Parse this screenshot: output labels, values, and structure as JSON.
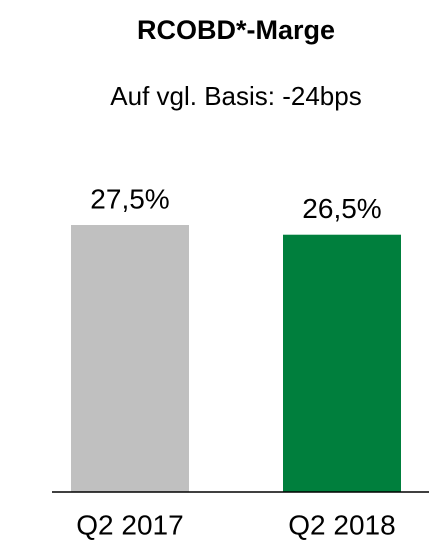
{
  "chart_data": {
    "type": "bar",
    "title": "RCOBD*-Marge",
    "subtitle": "Auf vgl. Basis: -24bps",
    "categories": [
      "Q2 2017",
      "Q2 2018"
    ],
    "values": [
      27.5,
      26.5
    ],
    "value_labels": [
      "27,5%",
      "26,5%"
    ],
    "colors": [
      "#c0c0c0",
      "#007f3d"
    ]
  }
}
